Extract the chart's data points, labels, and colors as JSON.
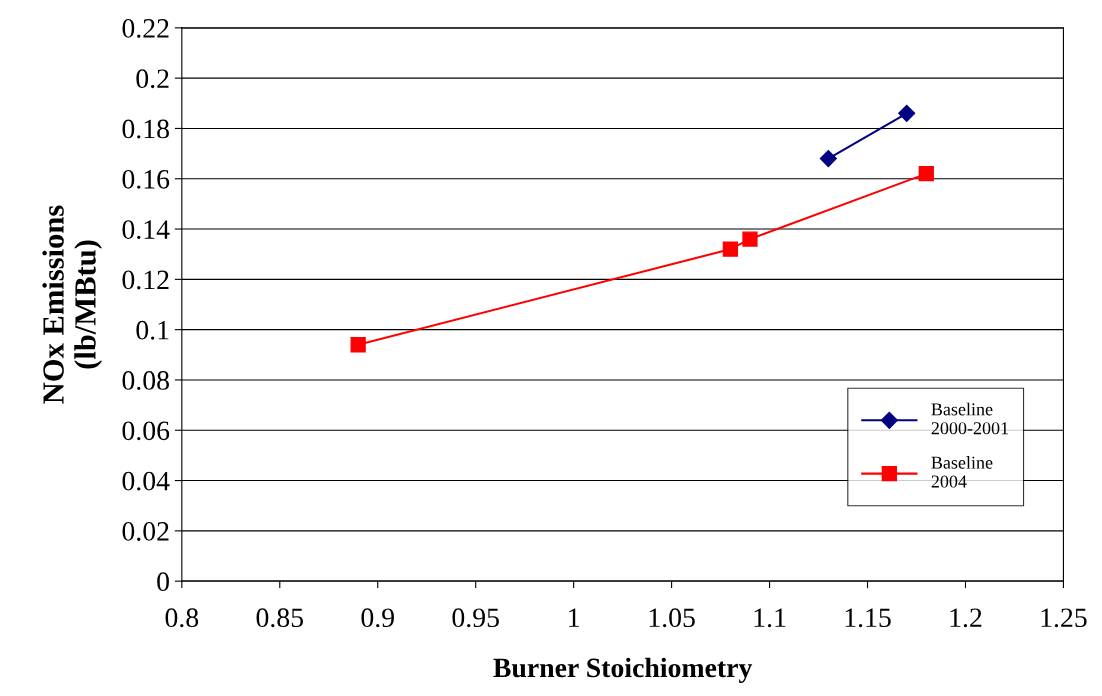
{
  "chart_data": {
    "type": "line",
    "xlabel": "Burner Stoichiometry",
    "ylabel": "NOx Emissions\n(lb/MBtu)",
    "xlim": [
      0.8,
      1.25
    ],
    "xticks": [
      0.8,
      0.85,
      0.9,
      0.95,
      1,
      1.05,
      1.1,
      1.15,
      1.2,
      1.25
    ],
    "ylim": [
      0,
      0.22
    ],
    "yticks": [
      0,
      0.02,
      0.04,
      0.06,
      0.08,
      0.1,
      0.12,
      0.14,
      0.16,
      0.18,
      0.2,
      0.22
    ],
    "grid": "y",
    "legend": "bottom right",
    "series": [
      {
        "name": "Baseline\n2000-2001",
        "color": "#000080",
        "marker": "diamond",
        "x": [
          1.13,
          1.17
        ],
        "values": [
          0.168,
          0.186
        ]
      },
      {
        "name": "Baseline\n2004",
        "color": "#ff0000",
        "marker": "square",
        "x": [
          0.89,
          1.08,
          1.09,
          1.18
        ],
        "values": [
          0.094,
          0.132,
          0.136,
          0.162
        ]
      }
    ]
  }
}
